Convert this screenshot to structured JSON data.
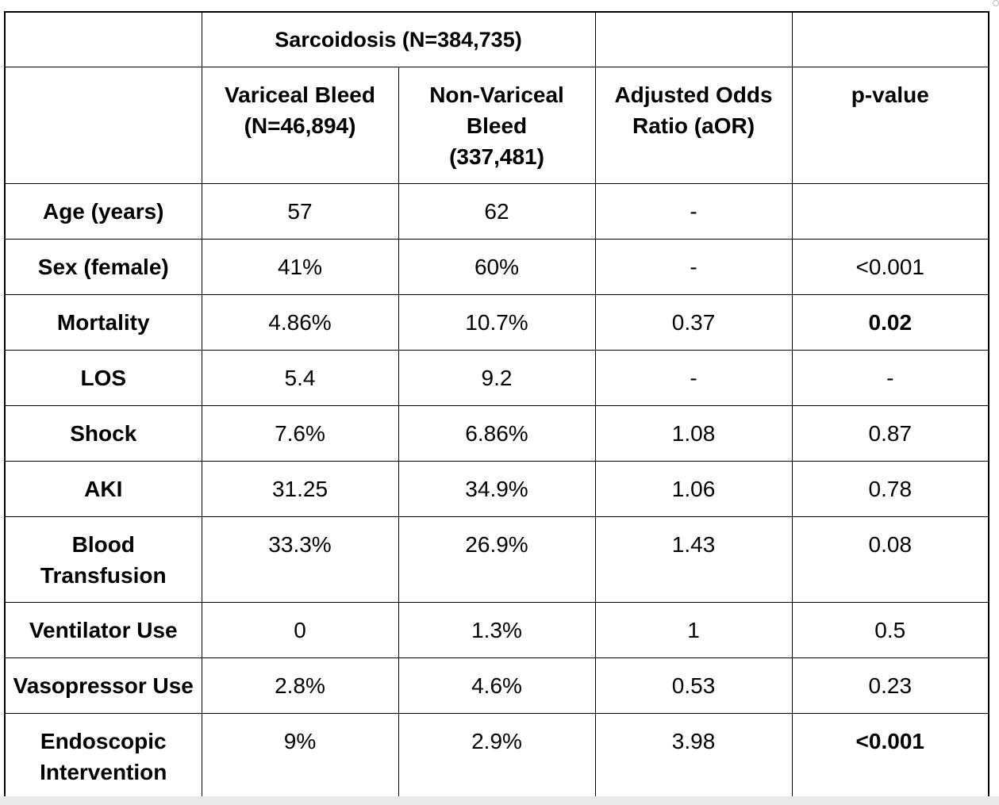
{
  "table": {
    "group_header": "Sarcoidosis (N=384,735)",
    "columns": [
      {
        "line1": "Variceal Bleed",
        "line2": "(N=46,894)",
        "line3": ""
      },
      {
        "line1": "Non-Variceal",
        "line2": "Bleed",
        "line3": "(337,481)"
      },
      {
        "line1": "Adjusted Odds",
        "line2": "Ratio (aOR)",
        "line3": ""
      },
      {
        "line1": "p-value",
        "line2": "",
        "line3": ""
      }
    ],
    "rows": [
      {
        "label1": "Age (years)",
        "label2": "",
        "variceal": "57",
        "non_variceal": "62",
        "aor": "-",
        "p_value": ""
      },
      {
        "label1": "Sex (female)",
        "label2": "",
        "variceal": "41%",
        "non_variceal": "60%",
        "aor": "-",
        "p_value": "<0.001"
      },
      {
        "label1": "Mortality",
        "label2": "",
        "variceal": "4.86%",
        "non_variceal": "10.7%",
        "aor": "0.37",
        "p_value": "0.02"
      },
      {
        "label1": "LOS",
        "label2": "",
        "variceal": "5.4",
        "non_variceal": "9.2",
        "aor": "-",
        "p_value": "-"
      },
      {
        "label1": "Shock",
        "label2": "",
        "variceal": "7.6%",
        "non_variceal": "6.86%",
        "aor": "1.08",
        "p_value": "0.87"
      },
      {
        "label1": "AKI",
        "label2": "",
        "variceal": "31.25",
        "non_variceal": "34.9%",
        "aor": "1.06",
        "p_value": "0.78"
      },
      {
        "label1": "Blood",
        "label2": "Transfusion",
        "variceal": "33.3%",
        "non_variceal": "26.9%",
        "aor": "1.43",
        "p_value": "0.08"
      },
      {
        "label1": "Ventilator Use",
        "label2": "",
        "variceal": "0",
        "non_variceal": "1.3%",
        "aor": "1",
        "p_value": "0.5"
      },
      {
        "label1": "Vasopressor Use",
        "label2": "",
        "variceal": "2.8%",
        "non_variceal": "4.6%",
        "aor": "0.53",
        "p_value": "0.23"
      },
      {
        "label1": "Endoscopic",
        "label2": "Intervention",
        "variceal": "9%",
        "non_variceal": "2.9%",
        "aor": "3.98",
        "p_value": "<0.001"
      }
    ]
  }
}
